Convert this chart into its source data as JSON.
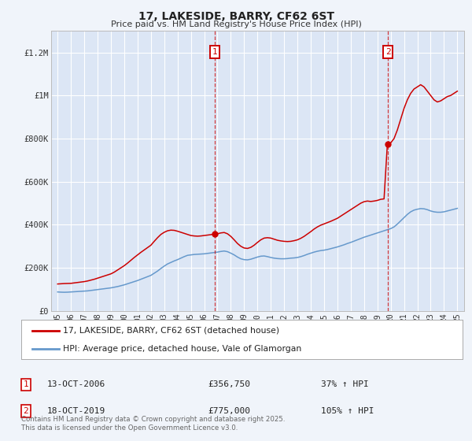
{
  "title": "17, LAKESIDE, BARRY, CF62 6ST",
  "subtitle": "Price paid vs. HM Land Registry's House Price Index (HPI)",
  "background_color": "#f0f4fa",
  "plot_background_color": "#dce6f5",
  "grid_color": "#ffffff",
  "ylim": [
    0,
    1300000
  ],
  "yticks": [
    0,
    200000,
    400000,
    600000,
    800000,
    1000000,
    1200000
  ],
  "ytick_labels": [
    "£0",
    "£200K",
    "£400K",
    "£600K",
    "£800K",
    "£1M",
    "£1.2M"
  ],
  "xlim_start": 1994.5,
  "xlim_end": 2025.5,
  "xtick_years": [
    1995,
    1996,
    1997,
    1998,
    1999,
    2000,
    2001,
    2002,
    2003,
    2004,
    2005,
    2006,
    2007,
    2008,
    2009,
    2010,
    2011,
    2012,
    2013,
    2014,
    2015,
    2016,
    2017,
    2018,
    2019,
    2020,
    2021,
    2022,
    2023,
    2024,
    2025
  ],
  "marker1_x": 2006.79,
  "marker1_y": 356750,
  "marker1_label": "1",
  "marker1_date": "13-OCT-2006",
  "marker1_price": "£356,750",
  "marker1_hpi": "37% ↑ HPI",
  "marker2_x": 2019.8,
  "marker2_y": 775000,
  "marker2_label": "2",
  "marker2_date": "18-OCT-2019",
  "marker2_price": "£775,000",
  "marker2_hpi": "105% ↑ HPI",
  "sale_color": "#cc0000",
  "hpi_color": "#6699cc",
  "marker_box_color": "#cc0000",
  "legend_label_sale": "17, LAKESIDE, BARRY, CF62 6ST (detached house)",
  "legend_label_hpi": "HPI: Average price, detached house, Vale of Glamorgan",
  "footnote": "Contains HM Land Registry data © Crown copyright and database right 2025.\nThis data is licensed under the Open Government Licence v3.0.",
  "hpi_data": [
    [
      1995.0,
      88000
    ],
    [
      1995.25,
      87000
    ],
    [
      1995.5,
      86500
    ],
    [
      1995.75,
      87000
    ],
    [
      1996.0,
      88000
    ],
    [
      1996.25,
      89000
    ],
    [
      1996.5,
      90000
    ],
    [
      1996.75,
      91000
    ],
    [
      1997.0,
      92000
    ],
    [
      1997.25,
      93000
    ],
    [
      1997.5,
      95000
    ],
    [
      1997.75,
      97000
    ],
    [
      1998.0,
      99000
    ],
    [
      1998.25,
      101000
    ],
    [
      1998.5,
      103000
    ],
    [
      1998.75,
      105000
    ],
    [
      1999.0,
      107000
    ],
    [
      1999.25,
      110000
    ],
    [
      1999.5,
      113000
    ],
    [
      1999.75,
      117000
    ],
    [
      2000.0,
      121000
    ],
    [
      2000.25,
      126000
    ],
    [
      2000.5,
      131000
    ],
    [
      2000.75,
      136000
    ],
    [
      2001.0,
      141000
    ],
    [
      2001.25,
      147000
    ],
    [
      2001.5,
      153000
    ],
    [
      2001.75,
      159000
    ],
    [
      2002.0,
      165000
    ],
    [
      2002.25,
      175000
    ],
    [
      2002.5,
      185000
    ],
    [
      2002.75,
      197000
    ],
    [
      2003.0,
      208000
    ],
    [
      2003.25,
      218000
    ],
    [
      2003.5,
      225000
    ],
    [
      2003.75,
      232000
    ],
    [
      2004.0,
      238000
    ],
    [
      2004.25,
      245000
    ],
    [
      2004.5,
      252000
    ],
    [
      2004.75,
      258000
    ],
    [
      2005.0,
      260000
    ],
    [
      2005.25,
      262000
    ],
    [
      2005.5,
      263000
    ],
    [
      2005.75,
      264000
    ],
    [
      2006.0,
      265000
    ],
    [
      2006.25,
      267000
    ],
    [
      2006.5,
      269000
    ],
    [
      2006.75,
      271000
    ],
    [
      2007.0,
      273000
    ],
    [
      2007.25,
      276000
    ],
    [
      2007.5,
      278000
    ],
    [
      2007.75,
      275000
    ],
    [
      2008.0,
      268000
    ],
    [
      2008.25,
      260000
    ],
    [
      2008.5,
      250000
    ],
    [
      2008.75,
      242000
    ],
    [
      2009.0,
      238000
    ],
    [
      2009.25,
      237000
    ],
    [
      2009.5,
      240000
    ],
    [
      2009.75,
      245000
    ],
    [
      2010.0,
      250000
    ],
    [
      2010.25,
      254000
    ],
    [
      2010.5,
      255000
    ],
    [
      2010.75,
      252000
    ],
    [
      2011.0,
      248000
    ],
    [
      2011.25,
      245000
    ],
    [
      2011.5,
      243000
    ],
    [
      2011.75,
      242000
    ],
    [
      2012.0,
      242000
    ],
    [
      2012.25,
      243000
    ],
    [
      2012.5,
      245000
    ],
    [
      2012.75,
      246000
    ],
    [
      2013.0,
      248000
    ],
    [
      2013.25,
      252000
    ],
    [
      2013.5,
      257000
    ],
    [
      2013.75,
      263000
    ],
    [
      2014.0,
      268000
    ],
    [
      2014.25,
      273000
    ],
    [
      2014.5,
      277000
    ],
    [
      2014.75,
      280000
    ],
    [
      2015.0,
      282000
    ],
    [
      2015.25,
      285000
    ],
    [
      2015.5,
      289000
    ],
    [
      2015.75,
      293000
    ],
    [
      2016.0,
      297000
    ],
    [
      2016.25,
      302000
    ],
    [
      2016.5,
      307000
    ],
    [
      2016.75,
      313000
    ],
    [
      2017.0,
      318000
    ],
    [
      2017.25,
      324000
    ],
    [
      2017.5,
      330000
    ],
    [
      2017.75,
      336000
    ],
    [
      2018.0,
      342000
    ],
    [
      2018.25,
      347000
    ],
    [
      2018.5,
      352000
    ],
    [
      2018.75,
      357000
    ],
    [
      2019.0,
      362000
    ],
    [
      2019.25,
      367000
    ],
    [
      2019.5,
      372000
    ],
    [
      2019.75,
      377000
    ],
    [
      2020.0,
      382000
    ],
    [
      2020.25,
      390000
    ],
    [
      2020.5,
      403000
    ],
    [
      2020.75,
      418000
    ],
    [
      2021.0,
      433000
    ],
    [
      2021.25,
      448000
    ],
    [
      2021.5,
      460000
    ],
    [
      2021.75,
      468000
    ],
    [
      2022.0,
      472000
    ],
    [
      2022.25,
      475000
    ],
    [
      2022.5,
      474000
    ],
    [
      2022.75,
      470000
    ],
    [
      2023.0,
      464000
    ],
    [
      2023.25,
      460000
    ],
    [
      2023.5,
      458000
    ],
    [
      2023.75,
      458000
    ],
    [
      2024.0,
      460000
    ],
    [
      2024.25,
      464000
    ],
    [
      2024.5,
      468000
    ],
    [
      2024.75,
      472000
    ],
    [
      2025.0,
      476000
    ]
  ],
  "sale_data": [
    [
      1995.0,
      125000
    ],
    [
      1995.25,
      126000
    ],
    [
      1995.5,
      127000
    ],
    [
      1995.75,
      127500
    ],
    [
      1996.0,
      128000
    ],
    [
      1996.25,
      130000
    ],
    [
      1996.5,
      132000
    ],
    [
      1996.75,
      134000
    ],
    [
      1997.0,
      136000
    ],
    [
      1997.25,
      139000
    ],
    [
      1997.5,
      143000
    ],
    [
      1997.75,
      147000
    ],
    [
      1998.0,
      152000
    ],
    [
      1998.25,
      157000
    ],
    [
      1998.5,
      162000
    ],
    [
      1998.75,
      167000
    ],
    [
      1999.0,
      172000
    ],
    [
      1999.25,
      180000
    ],
    [
      1999.5,
      190000
    ],
    [
      1999.75,
      200000
    ],
    [
      2000.0,
      210000
    ],
    [
      2000.25,
      222000
    ],
    [
      2000.5,
      235000
    ],
    [
      2000.75,
      248000
    ],
    [
      2001.0,
      260000
    ],
    [
      2001.25,
      272000
    ],
    [
      2001.5,
      283000
    ],
    [
      2001.75,
      294000
    ],
    [
      2002.0,
      305000
    ],
    [
      2002.25,
      323000
    ],
    [
      2002.5,
      340000
    ],
    [
      2002.75,
      355000
    ],
    [
      2003.0,
      365000
    ],
    [
      2003.25,
      372000
    ],
    [
      2003.5,
      375000
    ],
    [
      2003.75,
      374000
    ],
    [
      2004.0,
      370000
    ],
    [
      2004.25,
      365000
    ],
    [
      2004.5,
      360000
    ],
    [
      2004.75,
      355000
    ],
    [
      2005.0,
      350000
    ],
    [
      2005.25,
      348000
    ],
    [
      2005.5,
      347000
    ],
    [
      2005.75,
      348000
    ],
    [
      2006.0,
      350000
    ],
    [
      2006.25,
      352000
    ],
    [
      2006.5,
      354000
    ],
    [
      2006.75,
      356750
    ],
    [
      2007.0,
      358000
    ],
    [
      2007.25,
      362000
    ],
    [
      2007.5,
      364000
    ],
    [
      2007.75,
      358000
    ],
    [
      2008.0,
      346000
    ],
    [
      2008.25,
      330000
    ],
    [
      2008.5,
      313000
    ],
    [
      2008.75,
      300000
    ],
    [
      2009.0,
      292000
    ],
    [
      2009.25,
      290000
    ],
    [
      2009.5,
      295000
    ],
    [
      2009.75,
      305000
    ],
    [
      2010.0,
      318000
    ],
    [
      2010.25,
      330000
    ],
    [
      2010.5,
      338000
    ],
    [
      2010.75,
      340000
    ],
    [
      2011.0,
      338000
    ],
    [
      2011.25,
      333000
    ],
    [
      2011.5,
      328000
    ],
    [
      2011.75,
      325000
    ],
    [
      2012.0,
      323000
    ],
    [
      2012.25,
      322000
    ],
    [
      2012.5,
      323000
    ],
    [
      2012.75,
      326000
    ],
    [
      2013.0,
      330000
    ],
    [
      2013.25,
      337000
    ],
    [
      2013.5,
      346000
    ],
    [
      2013.75,
      357000
    ],
    [
      2014.0,
      368000
    ],
    [
      2014.25,
      380000
    ],
    [
      2014.5,
      390000
    ],
    [
      2014.75,
      398000
    ],
    [
      2015.0,
      404000
    ],
    [
      2015.25,
      410000
    ],
    [
      2015.5,
      416000
    ],
    [
      2015.75,
      423000
    ],
    [
      2016.0,
      430000
    ],
    [
      2016.25,
      440000
    ],
    [
      2016.5,
      450000
    ],
    [
      2016.75,
      460000
    ],
    [
      2017.0,
      470000
    ],
    [
      2017.25,
      480000
    ],
    [
      2017.5,
      490000
    ],
    [
      2017.75,
      500000
    ],
    [
      2018.0,
      507000
    ],
    [
      2018.25,
      510000
    ],
    [
      2018.5,
      508000
    ],
    [
      2018.75,
      510000
    ],
    [
      2019.0,
      513000
    ],
    [
      2019.25,
      518000
    ],
    [
      2019.5,
      520000
    ],
    [
      2019.75,
      775000
    ],
    [
      2020.0,
      780000
    ],
    [
      2020.25,
      800000
    ],
    [
      2020.5,
      840000
    ],
    [
      2020.75,
      890000
    ],
    [
      2021.0,
      940000
    ],
    [
      2021.25,
      980000
    ],
    [
      2021.5,
      1010000
    ],
    [
      2021.75,
      1030000
    ],
    [
      2022.0,
      1040000
    ],
    [
      2022.25,
      1050000
    ],
    [
      2022.5,
      1040000
    ],
    [
      2022.75,
      1020000
    ],
    [
      2023.0,
      1000000
    ],
    [
      2023.25,
      980000
    ],
    [
      2023.5,
      970000
    ],
    [
      2023.75,
      975000
    ],
    [
      2024.0,
      985000
    ],
    [
      2024.25,
      995000
    ],
    [
      2024.5,
      1000000
    ],
    [
      2024.75,
      1010000
    ],
    [
      2025.0,
      1020000
    ]
  ]
}
